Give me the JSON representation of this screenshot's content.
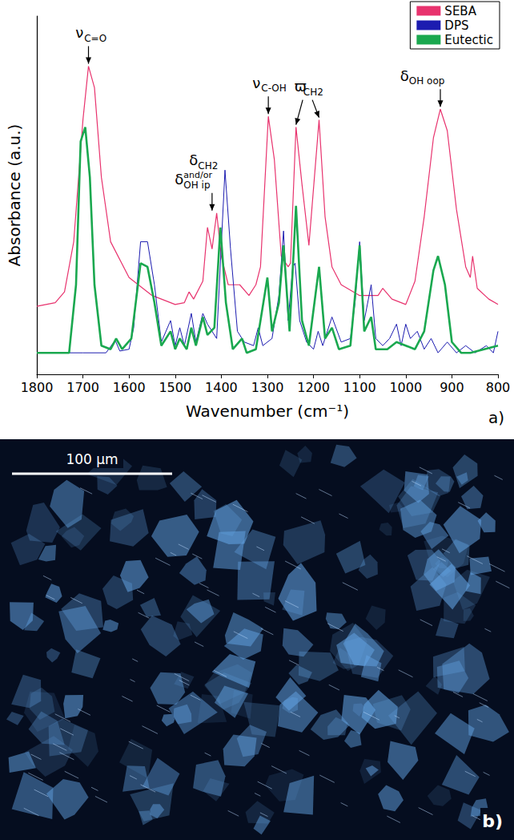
{
  "chart_data": {
    "type": "line",
    "x_label": "Wavenumber (cm⁻¹)",
    "y_label": "Absorbance (a.u.)",
    "panel_label": "a)",
    "xlim": [
      800,
      1800
    ],
    "xticks": [
      800,
      900,
      1000,
      1100,
      1200,
      1300,
      1400,
      1500,
      1600,
      1700,
      1800
    ],
    "ylim": [
      0,
      1
    ],
    "tick_labels": "x",
    "grid": false,
    "legend": "top-right",
    "series": [
      {
        "name": "SEBA",
        "color": "#e8336e",
        "x": [
          1800,
          1760,
          1740,
          1720,
          1700,
          1688,
          1675,
          1660,
          1640,
          1600,
          1550,
          1500,
          1480,
          1470,
          1460,
          1440,
          1430,
          1420,
          1410,
          1400,
          1385,
          1360,
          1340,
          1325,
          1315,
          1298,
          1285,
          1270,
          1255,
          1250,
          1238,
          1225,
          1210,
          1188,
          1175,
          1160,
          1140,
          1100,
          1060,
          1050,
          1030,
          1000,
          980,
          960,
          940,
          925,
          910,
          890,
          870,
          860,
          855,
          845,
          820,
          800
        ],
        "values": [
          0.19,
          0.2,
          0.23,
          0.37,
          0.71,
          0.86,
          0.8,
          0.55,
          0.37,
          0.27,
          0.22,
          0.195,
          0.2,
          0.23,
          0.21,
          0.26,
          0.41,
          0.35,
          0.45,
          0.33,
          0.25,
          0.25,
          0.22,
          0.25,
          0.3,
          0.72,
          0.6,
          0.33,
          0.3,
          0.31,
          0.69,
          0.53,
          0.36,
          0.71,
          0.44,
          0.3,
          0.25,
          0.22,
          0.22,
          0.24,
          0.21,
          0.195,
          0.26,
          0.44,
          0.66,
          0.74,
          0.68,
          0.46,
          0.3,
          0.27,
          0.33,
          0.24,
          0.21,
          0.195
        ]
      },
      {
        "name": "DPS",
        "color": "#1c1cb0",
        "x": [
          1800,
          1700,
          1650,
          1630,
          1620,
          1600,
          1590,
          1575,
          1560,
          1545,
          1530,
          1510,
          1500,
          1490,
          1480,
          1465,
          1455,
          1440,
          1430,
          1410,
          1392,
          1380,
          1365,
          1350,
          1330,
          1320,
          1310,
          1290,
          1275,
          1265,
          1255,
          1245,
          1240,
          1230,
          1215,
          1200,
          1190,
          1180,
          1160,
          1140,
          1120,
          1110,
          1100,
          1090,
          1075,
          1065,
          1050,
          1035,
          1020,
          1010,
          1000,
          990,
          975,
          960,
          945,
          930,
          910,
          890,
          870,
          850,
          825,
          810,
          800
        ],
        "values": [
          0.06,
          0.06,
          0.06,
          0.095,
          0.065,
          0.07,
          0.13,
          0.37,
          0.37,
          0.25,
          0.09,
          0.15,
          0.08,
          0.13,
          0.08,
          0.17,
          0.09,
          0.17,
          0.14,
          0.1,
          0.57,
          0.35,
          0.12,
          0.09,
          0.08,
          0.13,
          0.08,
          0.1,
          0.22,
          0.4,
          0.15,
          0.3,
          0.31,
          0.15,
          0.09,
          0.07,
          0.12,
          0.08,
          0.16,
          0.09,
          0.1,
          0.2,
          0.37,
          0.15,
          0.25,
          0.1,
          0.08,
          0.1,
          0.14,
          0.08,
          0.14,
          0.1,
          0.12,
          0.07,
          0.1,
          0.06,
          0.09,
          0.06,
          0.08,
          0.06,
          0.08,
          0.06,
          0.12
        ]
      },
      {
        "name": "Eutectic",
        "color": "#1aa84f",
        "x": [
          1800,
          1730,
          1715,
          1705,
          1695,
          1685,
          1675,
          1660,
          1640,
          1628,
          1615,
          1595,
          1575,
          1560,
          1545,
          1530,
          1510,
          1500,
          1490,
          1475,
          1465,
          1455,
          1440,
          1430,
          1415,
          1402,
          1390,
          1375,
          1355,
          1345,
          1325,
          1300,
          1290,
          1275,
          1265,
          1252,
          1238,
          1225,
          1210,
          1188,
          1175,
          1160,
          1145,
          1120,
          1100,
          1090,
          1075,
          1065,
          1040,
          1020,
          1000,
          980,
          960,
          940,
          930,
          915,
          900,
          880,
          860,
          830,
          800
        ],
        "values": [
          0.06,
          0.06,
          0.25,
          0.65,
          0.69,
          0.55,
          0.25,
          0.08,
          0.07,
          0.1,
          0.07,
          0.1,
          0.31,
          0.3,
          0.2,
          0.08,
          0.12,
          0.07,
          0.1,
          0.07,
          0.13,
          0.08,
          0.16,
          0.11,
          0.13,
          0.41,
          0.2,
          0.07,
          0.1,
          0.06,
          0.07,
          0.27,
          0.12,
          0.2,
          0.36,
          0.12,
          0.47,
          0.15,
          0.08,
          0.3,
          0.1,
          0.13,
          0.07,
          0.08,
          0.36,
          0.12,
          0.16,
          0.07,
          0.07,
          0.09,
          0.08,
          0.07,
          0.12,
          0.29,
          0.33,
          0.25,
          0.09,
          0.06,
          0.06,
          0.07,
          0.08
        ]
      }
    ],
    "annotations": [
      {
        "x": [
          1688
        ],
        "lines": [
          [
            {
              "t": "ν"
            },
            {
              "sub": "C=O"
            }
          ]
        ]
      },
      {
        "x": [
          1420
        ],
        "lines": [
          [
            {
              "t": "δ"
            },
            {
              "sub": "CH2"
            }
          ],
          [
            {
              "t": "δ"
            },
            {
              "sup": "and/or",
              "sub": "OH ip"
            }
          ]
        ]
      },
      {
        "x": [
          1298
        ],
        "lines": [
          [
            {
              "t": "ν"
            },
            {
              "sub": "C-OH"
            }
          ]
        ]
      },
      {
        "x": [
          1238,
          1188
        ],
        "lines": [
          [
            {
              "t": "ϖ"
            },
            {
              "sub": "CH2"
            }
          ]
        ]
      },
      {
        "x": [
          925
        ],
        "lines": [
          [
            {
              "t": "δ"
            },
            {
              "sub": "OH oop"
            }
          ]
        ]
      }
    ]
  },
  "panel_b": {
    "label": "b)",
    "scale_bar": "100 µm"
  }
}
